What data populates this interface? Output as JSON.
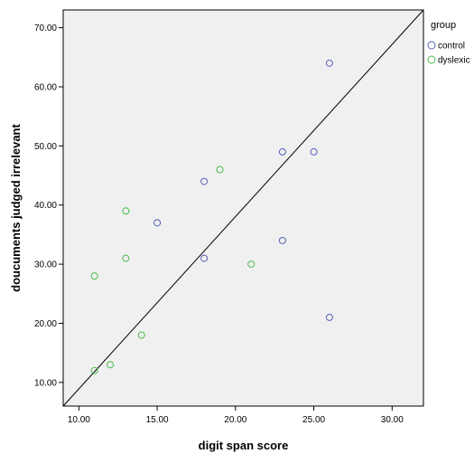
{
  "chart_data": {
    "type": "scatter",
    "title": "",
    "xlabel": "digit span score",
    "ylabel": "doucuments judged irrelevant",
    "xlim": [
      9,
      32
    ],
    "ylim": [
      6,
      73
    ],
    "x_ticks": [
      10,
      15,
      20,
      25,
      30
    ],
    "x_tick_labels": [
      "10.00",
      "15.00",
      "20.00",
      "25.00",
      "30.00"
    ],
    "y_ticks": [
      10,
      20,
      30,
      40,
      50,
      60,
      70
    ],
    "y_tick_labels": [
      "10.00",
      "20.00",
      "30.00",
      "40.00",
      "50.00",
      "60.00",
      "70.00"
    ],
    "grid": false,
    "legend": {
      "title": "group",
      "placement": "right"
    },
    "series": [
      {
        "name": "control",
        "color": "#5560b8",
        "marker": "open-circle",
        "points": [
          [
            26,
            64
          ],
          [
            23,
            49
          ],
          [
            25,
            49
          ],
          [
            18,
            44
          ],
          [
            15,
            37
          ],
          [
            23,
            34
          ],
          [
            18,
            31
          ],
          [
            26,
            21
          ]
        ]
      },
      {
        "name": "dyslexic",
        "color": "#4cbb4c",
        "marker": "open-circle",
        "points": [
          [
            19,
            46
          ],
          [
            13,
            39
          ],
          [
            13,
            31
          ],
          [
            11,
            28
          ],
          [
            21,
            30
          ],
          [
            14,
            18
          ],
          [
            12,
            13
          ],
          [
            11,
            12
          ]
        ]
      }
    ],
    "reference_line": {
      "from": [
        9,
        6
      ],
      "to": [
        32,
        73
      ],
      "color": "#000000"
    },
    "plot_background": "#f0f0f0"
  }
}
